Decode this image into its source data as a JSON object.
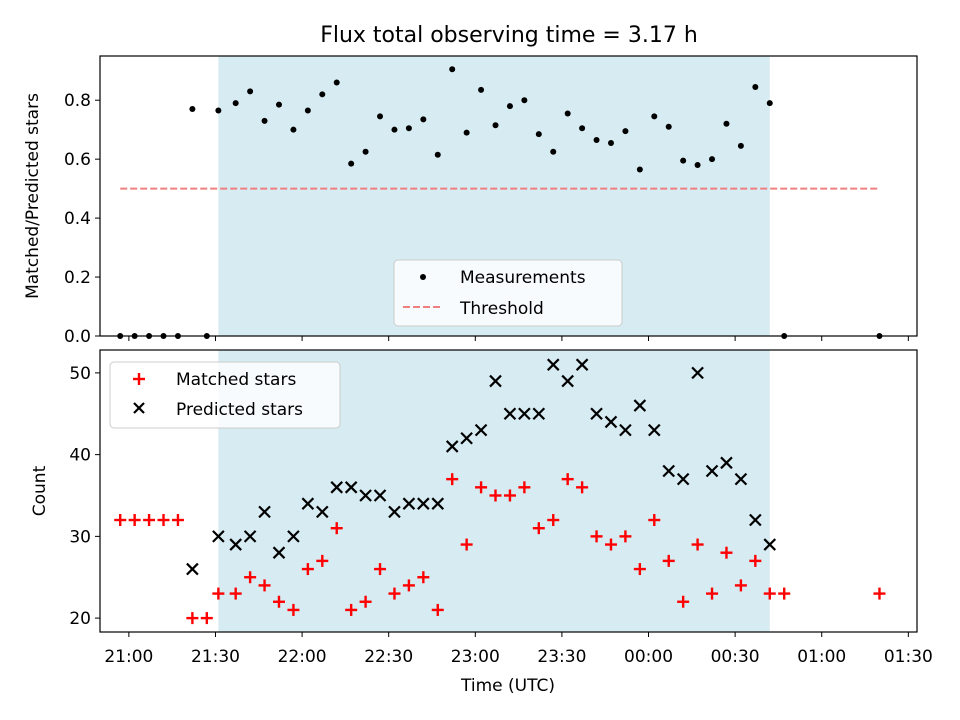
{
  "chart_data": [
    {
      "type": "scatter",
      "title": "Flux total observing time = 3.17 h",
      "xlabel": "",
      "ylabel": "Matched/Predicted stars",
      "xlim": [
        "20:50",
        "01:33"
      ],
      "ylim": [
        0,
        0.95
      ],
      "yticks": [
        0.0,
        0.2,
        0.4,
        0.6,
        0.8
      ],
      "ytick_labels": [
        "0.0",
        "0.2",
        "0.4",
        "0.6",
        "0.8"
      ],
      "shaded_span": [
        "21:31",
        "00:42"
      ],
      "legend_position": "lower center",
      "series": [
        {
          "name": "Measurements",
          "marker": "dot",
          "color": "#000000",
          "x": [
            "20:57",
            "21:02",
            "21:07",
            "21:12",
            "21:17",
            "21:22",
            "21:27",
            "21:31",
            "21:37",
            "21:42",
            "21:47",
            "21:52",
            "21:57",
            "22:02",
            "22:07",
            "22:12",
            "22:17",
            "22:22",
            "22:27",
            "22:32",
            "22:37",
            "22:42",
            "22:47",
            "22:52",
            "22:57",
            "23:02",
            "23:07",
            "23:12",
            "23:17",
            "23:22",
            "23:27",
            "23:32",
            "23:37",
            "23:42",
            "23:47",
            "23:52",
            "23:57",
            "00:02",
            "00:07",
            "00:12",
            "00:17",
            "00:22",
            "00:27",
            "00:32",
            "00:37",
            "00:42",
            "00:47",
            "01:20"
          ],
          "y": [
            0.0,
            0.0,
            0.0,
            0.0,
            0.0,
            0.77,
            0.0,
            0.765,
            0.79,
            0.83,
            0.73,
            0.785,
            0.7,
            0.765,
            0.82,
            0.86,
            0.585,
            0.625,
            0.745,
            0.7,
            0.705,
            0.735,
            0.615,
            0.905,
            0.69,
            0.835,
            0.715,
            0.78,
            0.8,
            0.685,
            0.625,
            0.755,
            0.705,
            0.665,
            0.655,
            0.695,
            0.565,
            0.745,
            0.71,
            0.595,
            0.58,
            0.6,
            0.72,
            0.645,
            0.845,
            0.79,
            0.0,
            0.0
          ]
        },
        {
          "name": "Threshold",
          "style": "dashed",
          "color": "#f08080",
          "x": [
            "20:57",
            "01:20"
          ],
          "y": [
            0.5,
            0.5
          ]
        }
      ]
    },
    {
      "type": "scatter",
      "title": "",
      "xlabel": "Time (UTC)",
      "ylabel": "Count",
      "xlim": [
        "20:50",
        "01:33"
      ],
      "ylim": [
        18.3,
        52.8
      ],
      "yticks": [
        20,
        30,
        40,
        50
      ],
      "ytick_labels": [
        "20",
        "30",
        "40",
        "50"
      ],
      "xticks": [
        "21:00",
        "21:30",
        "22:00",
        "22:30",
        "23:00",
        "23:30",
        "00:00",
        "00:30",
        "01:00",
        "01:30"
      ],
      "shaded_span": [
        "21:31",
        "00:42"
      ],
      "legend_position": "upper left",
      "series": [
        {
          "name": "Matched stars",
          "marker": "plus",
          "color": "#ff0000",
          "x": [
            "20:57",
            "21:02",
            "21:07",
            "21:12",
            "21:17",
            "21:22",
            "21:27",
            "21:31",
            "21:37",
            "21:42",
            "21:47",
            "21:52",
            "21:57",
            "22:02",
            "22:07",
            "22:12",
            "22:17",
            "22:22",
            "22:27",
            "22:32",
            "22:37",
            "22:42",
            "22:47",
            "22:52",
            "22:57",
            "23:02",
            "23:07",
            "23:12",
            "23:17",
            "23:22",
            "23:27",
            "23:32",
            "23:37",
            "23:42",
            "23:47",
            "23:52",
            "23:57",
            "00:02",
            "00:07",
            "00:12",
            "00:17",
            "00:22",
            "00:27",
            "00:32",
            "00:37",
            "00:42",
            "00:47",
            "01:20"
          ],
          "y": [
            32,
            32,
            32,
            32,
            32,
            20,
            20,
            23,
            23,
            25,
            24,
            22,
            21,
            26,
            27,
            31,
            21,
            22,
            26,
            23,
            24,
            25,
            21,
            37,
            29,
            36,
            35,
            35,
            36,
            31,
            32,
            37,
            36,
            30,
            29,
            30,
            26,
            32,
            27,
            22,
            29,
            23,
            28,
            24,
            27,
            23,
            23,
            23
          ]
        },
        {
          "name": "Predicted stars",
          "marker": "x",
          "color": "#000000",
          "x": [
            "21:22",
            "21:31",
            "21:37",
            "21:42",
            "21:47",
            "21:52",
            "21:57",
            "22:02",
            "22:07",
            "22:12",
            "22:17",
            "22:22",
            "22:27",
            "22:32",
            "22:37",
            "22:42",
            "22:47",
            "22:52",
            "22:57",
            "23:02",
            "23:07",
            "23:12",
            "23:17",
            "23:22",
            "23:27",
            "23:32",
            "23:37",
            "23:42",
            "23:47",
            "23:52",
            "23:57",
            "00:02",
            "00:07",
            "00:12",
            "00:17",
            "00:22",
            "00:27",
            "00:32",
            "00:37",
            "00:42"
          ],
          "y": [
            26,
            30,
            29,
            30,
            33,
            28,
            30,
            34,
            33,
            36,
            36,
            35,
            35,
            33,
            34,
            34,
            34,
            41,
            42,
            43,
            49,
            45,
            45,
            45,
            51,
            49,
            51,
            45,
            44,
            43,
            46,
            43,
            38,
            37,
            50,
            38,
            39,
            37,
            32,
            29
          ]
        }
      ]
    }
  ]
}
